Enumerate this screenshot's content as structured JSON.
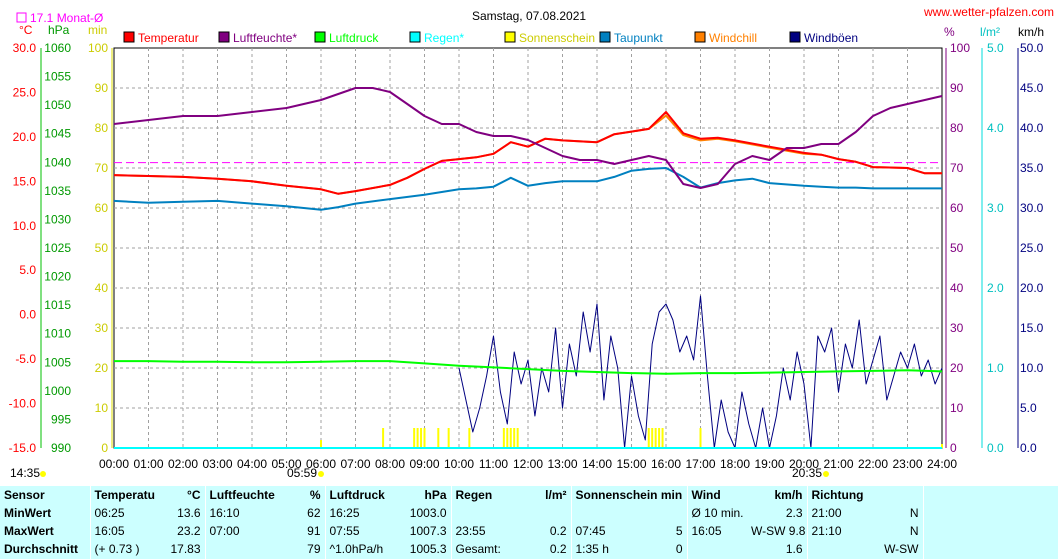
{
  "header": {
    "title": "Samstag, 07.08.2021",
    "site": "www.wetter-pfalzen.com",
    "monthly_avg": "17.1 Monat-Ø",
    "sunrise": "05:59",
    "sunset": "20:35",
    "current_time": "14:35"
  },
  "colors": {
    "temperature": "#ff0000",
    "humidity": "#800080",
    "pressure": "#00ff00",
    "rain": "#00ffff",
    "sunshine": "#ffff00",
    "dewpoint": "#0080c0",
    "windchill": "#ff8000",
    "gust": "#000080",
    "monthly_avg": "#ff00ff",
    "grid": "#a0a0a0",
    "stats_bg": "#ccffff"
  },
  "chart_data": {
    "type": "line",
    "title": "Samstag, 07.08.2021",
    "x": [
      "00:00",
      "01:00",
      "02:00",
      "03:00",
      "04:00",
      "05:00",
      "06:00",
      "07:00",
      "08:00",
      "09:00",
      "10:00",
      "11:00",
      "12:00",
      "13:00",
      "14:00",
      "15:00",
      "16:00",
      "17:00",
      "18:00",
      "19:00",
      "20:00",
      "21:00",
      "22:00",
      "23:00",
      "24:00"
    ],
    "axes": {
      "temperature": {
        "unit": "°C",
        "min": -15,
        "max": 30,
        "ticks": [
          "30.0",
          "25.0",
          "20.0",
          "15.0",
          "10.0",
          "5.0",
          "0.0",
          "-5.0",
          "-10.0",
          "-15.0"
        ]
      },
      "pressure": {
        "unit": "hPa",
        "min": 990,
        "max": 1060,
        "ticks": [
          "1060",
          "1055",
          "1050",
          "1045",
          "1040",
          "1035",
          "1030",
          "1025",
          "1020",
          "1015",
          "1010",
          "1005",
          "1000",
          "995",
          "990"
        ]
      },
      "sunshine": {
        "unit": "min",
        "min": 0,
        "max": 100,
        "ticks": [
          "100",
          "90",
          "80",
          "70",
          "60",
          "50",
          "40",
          "30",
          "20",
          "10",
          "0"
        ]
      },
      "humidity": {
        "unit": "%",
        "min": 0,
        "max": 100,
        "ticks": [
          "100",
          "90",
          "80",
          "70",
          "60",
          "50",
          "40",
          "30",
          "20",
          "10",
          "0"
        ]
      },
      "rain": {
        "unit": "l/m²",
        "min": 0,
        "max": 5,
        "ticks": [
          "5.0",
          "4.0",
          "3.0",
          "2.0",
          "1.0",
          "0.0"
        ]
      },
      "wind": {
        "unit": "km/h",
        "min": 0,
        "max": 50,
        "ticks": [
          "50.0",
          "45.0",
          "40.0",
          "35.0",
          "30.0",
          "25.0",
          "20.0",
          "15.0",
          "10.0",
          "5.0",
          "0.0"
        ]
      }
    },
    "monthly_avg_temperature": 17.1,
    "legend": [
      "Temperatur",
      "Luftfeuchte*",
      "Luftdruck",
      "Regen*",
      "Sonnenschein",
      "Taupunkt",
      "Windchill",
      "Windböen"
    ],
    "series": [
      {
        "name": "Temperatur",
        "axis": "temperature",
        "x": [
          0,
          1,
          2,
          3,
          4,
          5,
          6,
          6.5,
          7,
          8,
          8.5,
          9,
          9.5,
          10,
          10.5,
          11,
          11.5,
          12,
          12.5,
          13,
          14,
          14.5,
          15,
          15.5,
          16,
          16.5,
          17,
          17.5,
          18,
          19,
          20,
          20.5,
          21,
          21.5,
          22,
          23,
          23.5,
          24
        ],
        "values": [
          15.7,
          15.6,
          15.5,
          15.3,
          15.0,
          14.5,
          14.1,
          13.6,
          13.9,
          14.6,
          15.4,
          16.4,
          17.3,
          17.5,
          17.7,
          18.1,
          19.4,
          18.9,
          19.8,
          19.6,
          19.4,
          20.3,
          20.6,
          20.9,
          22.8,
          20.4,
          19.8,
          19.9,
          19.6,
          18.9,
          18.2,
          18.0,
          17.5,
          17.2,
          16.6,
          16.5,
          15.9,
          15.9
        ]
      },
      {
        "name": "Luftfeuchte*",
        "axis": "humidity",
        "x": [
          0,
          1,
          2,
          3,
          4,
          5,
          6,
          7,
          7.5,
          8,
          8.5,
          9,
          9.5,
          10,
          10.5,
          11,
          11.5,
          12,
          12.5,
          13,
          13.5,
          14,
          14.5,
          15,
          15.5,
          16,
          16.5,
          17,
          17.5,
          18,
          18.5,
          19,
          19.5,
          20,
          20.5,
          21,
          21.5,
          22,
          22.5,
          23,
          23.5,
          24
        ],
        "values": [
          81,
          82,
          83,
          83,
          84,
          85,
          87,
          90,
          90,
          89,
          86,
          83,
          81,
          81,
          79,
          78,
          78,
          77,
          75,
          73,
          72,
          72,
          71,
          72,
          73,
          72,
          66,
          65,
          66,
          71,
          73,
          72,
          75,
          75,
          76,
          76,
          79,
          83,
          85,
          86,
          87,
          88
        ]
      },
      {
        "name": "Luftdruck",
        "axis": "pressure",
        "x": [
          0,
          1,
          2,
          3,
          4,
          5,
          6,
          7,
          8,
          9,
          10,
          11,
          12,
          13,
          14,
          15,
          16,
          17,
          18,
          19,
          20,
          21,
          22,
          23,
          24
        ],
        "values": [
          1005.2,
          1005.2,
          1005.1,
          1005.1,
          1005.0,
          1005.0,
          1005.1,
          1005.2,
          1005.2,
          1004.8,
          1004.4,
          1004.1,
          1003.8,
          1003.5,
          1003.3,
          1003.1,
          1003.0,
          1003.1,
          1003.1,
          1003.2,
          1003.3,
          1003.4,
          1003.5,
          1003.6,
          1003.4
        ]
      },
      {
        "name": "Regen*",
        "axis": "rain",
        "x": [
          0,
          24
        ],
        "values": [
          0,
          0
        ]
      },
      {
        "name": "Sonnenschein",
        "axis": "sunshine",
        "x": [
          6.0,
          7.8,
          8.7,
          8.8,
          8.9,
          9.0,
          9.4,
          9.7,
          10.3,
          11.3,
          11.4,
          11.5,
          11.6,
          11.7,
          15.5,
          15.6,
          15.7,
          15.8,
          15.9,
          17.0,
          24.0
        ],
        "values": [
          2,
          5,
          5,
          5,
          5,
          5,
          5,
          5,
          5,
          5,
          5,
          5,
          5,
          5,
          5,
          5,
          5,
          5,
          5,
          5,
          1
        ]
      },
      {
        "name": "Taupunkt",
        "axis": "temperature",
        "x": [
          0,
          1,
          2,
          3,
          4,
          5,
          6,
          6.5,
          7,
          8,
          9,
          10,
          10.5,
          11,
          11.5,
          12,
          12.5,
          13,
          14,
          14.5,
          15,
          15.5,
          16,
          16.5,
          17,
          17.5,
          18,
          18.5,
          19,
          20,
          20.5,
          21,
          21.5,
          22,
          23,
          24
        ],
        "values": [
          12.8,
          12.6,
          12.7,
          12.8,
          12.5,
          12.2,
          11.8,
          12.1,
          12.5,
          13.0,
          13.5,
          14.1,
          14.2,
          14.4,
          15.4,
          14.5,
          14.8,
          15.0,
          15.0,
          15.5,
          16.2,
          16.4,
          16.5,
          15.5,
          14.3,
          14.8,
          15.1,
          15.3,
          14.8,
          14.5,
          14.4,
          14.3,
          14.3,
          14.2,
          14.2,
          14.2
        ]
      },
      {
        "name": "Windchill",
        "axis": "temperature",
        "x": [
          0,
          1,
          2,
          3,
          4,
          5,
          6,
          6.5,
          7,
          8,
          8.5,
          9,
          9.5,
          10,
          10.5,
          11,
          11.5,
          12,
          12.5,
          13,
          14,
          14.5,
          15,
          15.5,
          16,
          16.5,
          17,
          17.5,
          18,
          19,
          20,
          20.5,
          21,
          21.5,
          22,
          23,
          23.5,
          24
        ],
        "values": [
          15.7,
          15.6,
          15.5,
          15.3,
          15.0,
          14.5,
          14.1,
          13.6,
          13.9,
          14.6,
          15.4,
          16.4,
          17.3,
          17.5,
          17.7,
          18.1,
          19.4,
          18.9,
          19.8,
          19.6,
          19.4,
          20.3,
          20.6,
          20.9,
          22.4,
          20.2,
          19.6,
          19.8,
          19.5,
          18.8,
          18.1,
          18.0,
          17.5,
          17.2,
          16.6,
          16.5,
          15.9,
          15.9
        ]
      },
      {
        "name": "Windböen",
        "axis": "wind",
        "x": [
          10.0,
          10.2,
          10.4,
          10.6,
          10.8,
          11.0,
          11.2,
          11.4,
          11.6,
          11.8,
          12.0,
          12.2,
          12.4,
          12.6,
          12.8,
          13.0,
          13.2,
          13.4,
          13.6,
          13.8,
          14.0,
          14.2,
          14.4,
          14.6,
          14.8,
          15.0,
          15.2,
          15.4,
          15.6,
          15.8,
          16.0,
          16.2,
          16.4,
          16.6,
          16.8,
          17.0,
          17.2,
          17.4,
          17.6,
          17.8,
          18.0,
          18.2,
          18.4,
          18.6,
          18.8,
          19.0,
          19.2,
          19.4,
          19.6,
          19.8,
          20.0,
          20.2,
          20.4,
          20.6,
          20.8,
          21.0,
          21.2,
          21.4,
          21.6,
          21.8,
          22.0,
          22.2,
          22.4,
          22.6,
          22.8,
          23.0,
          23.2,
          23.4,
          23.6,
          23.8,
          24.0
        ],
        "values": [
          10,
          6,
          2,
          5,
          9,
          14,
          7,
          3,
          12,
          8,
          11,
          4,
          10,
          7,
          15,
          5,
          13,
          9,
          17,
          12,
          18,
          6,
          14,
          10,
          0,
          9,
          4,
          1,
          13,
          17,
          18,
          16,
          12,
          14,
          11,
          19,
          9,
          0,
          6,
          2,
          0,
          7,
          3,
          0,
          5,
          0,
          4,
          10,
          6,
          12,
          8,
          0,
          14,
          12,
          15,
          7,
          13,
          10,
          16,
          8,
          11,
          14,
          6,
          9,
          12,
          10,
          13,
          9,
          11,
          8,
          10
        ]
      }
    ]
  },
  "stats": {
    "headers": {
      "sensor": "Sensor",
      "temp": "Temperatur",
      "temp_unit": "°C",
      "hum": "Luftfeuchte",
      "hum_unit": "%",
      "press": "Luftdruck",
      "press_unit": "hPa",
      "rain": "Regen",
      "rain_unit": "l/m²",
      "sun": "Sonnenschein min",
      "wind": "Wind",
      "wind_unit": "km/h",
      "dir": "Richtung"
    },
    "rows": [
      {
        "label": "MinWert",
        "temp_time": "06:25",
        "temp": "13.6",
        "hum_time": "16:10",
        "hum": "62",
        "press_time": "16:25",
        "press": "1003.0",
        "rain_time": "",
        "rain": "",
        "sun_time": "",
        "sun": "",
        "wind_time": "Ø 10 min.",
        "wind": "2.3",
        "dir_time": "21:00",
        "dir": "N"
      },
      {
        "label": "MaxWert",
        "temp_time": "16:05",
        "temp": "23.2",
        "hum_time": "07:00",
        "hum": "91",
        "press_time": "07:55",
        "press": "1007.3",
        "rain_time": "23:55",
        "rain": "0.2",
        "sun_time": "07:45",
        "sun": "5",
        "wind_time": "16:05",
        "wind": "W-SW 9.8",
        "dir_time": "21:10",
        "dir": "N"
      },
      {
        "label": "Durchschnitt",
        "temp_time": "(+ 0.73 )",
        "temp": "17.83",
        "hum_time": "",
        "hum": "79",
        "press_time": "^1.0hPa/h",
        "press": "1005.3",
        "rain_time": "Gesamt:",
        "rain": "0.2",
        "sun_time": "1:35 h",
        "sun": "0",
        "wind_time": "",
        "wind": "1.6",
        "dir_time": "",
        "dir": "W-SW"
      }
    ]
  }
}
